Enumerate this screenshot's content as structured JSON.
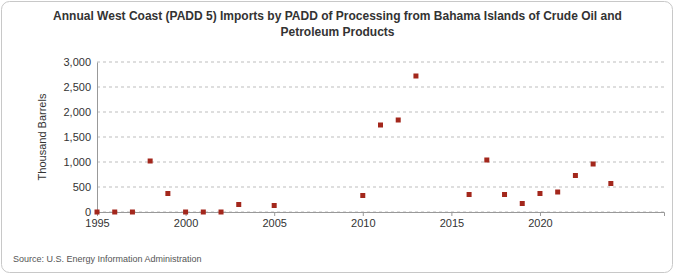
{
  "chart_data": {
    "type": "scatter",
    "title": "Annual West Coast (PADD 5) Imports by PADD of Processing from Bahama Islands of Crude Oil and Petroleum Products",
    "y_label": "Thousand Barrels",
    "annotations": [
      "Source: U.S. Energy Information Administration"
    ],
    "x": [
      1995,
      1996,
      1997,
      1998,
      1999,
      2000,
      2001,
      2002,
      2003,
      2005,
      2010,
      2011,
      2012,
      2013,
      2016,
      2017,
      2018,
      2019,
      2020,
      2021,
      2022,
      2023,
      2024
    ],
    "values": [
      0,
      0,
      0,
      1020,
      370,
      0,
      0,
      0,
      150,
      130,
      330,
      1740,
      1840,
      2720,
      350,
      1040,
      350,
      170,
      370,
      400,
      730,
      960,
      570
    ],
    "color": "#a3271c",
    "marker": "square",
    "xlim": [
      1995,
      2027
    ],
    "xticks": [
      1995,
      2000,
      2005,
      2010,
      2015,
      2020
    ],
    "ylim": [
      0,
      3000
    ],
    "yticks": [
      0,
      500,
      {
        "value": 1000,
        "label": "1,000"
      },
      {
        "value": 1500,
        "label": "1,500"
      },
      {
        "value": 2000,
        "label": "2,000"
      },
      {
        "value": 2500,
        "label": "2,500"
      },
      {
        "value": 3000,
        "label": "3,000"
      }
    ],
    "grid": true
  }
}
